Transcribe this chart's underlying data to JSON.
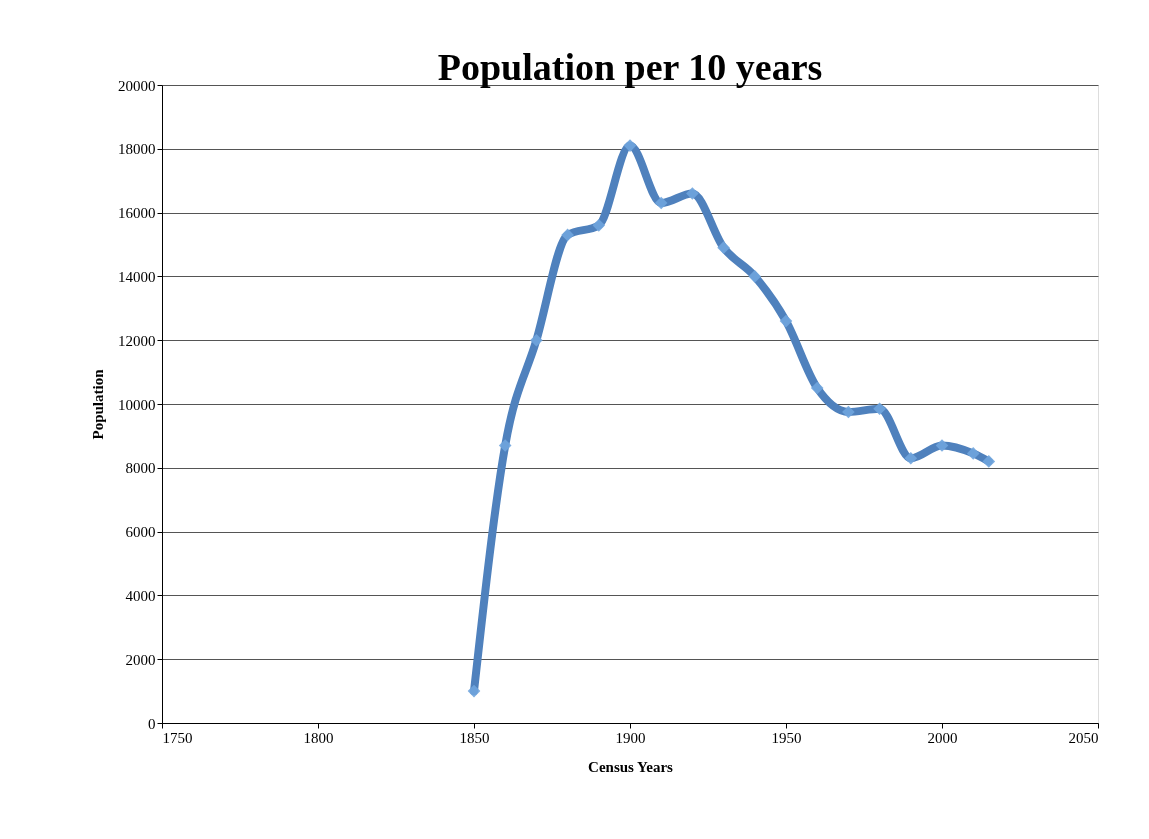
{
  "chart_data": {
    "type": "line",
    "title": "Population per 10 years",
    "xlabel": "Census Years",
    "ylabel": "Population",
    "x": [
      1850,
      1860,
      1870,
      1880,
      1890,
      1900,
      1910,
      1920,
      1930,
      1940,
      1950,
      1960,
      1970,
      1980,
      1990,
      2000,
      2010,
      2015
    ],
    "series": [
      {
        "color": "#4f81bd",
        "values": [
          1000,
          8700,
          12000,
          15300,
          15600,
          18100,
          16300,
          16600,
          14900,
          14000,
          12600,
          10500,
          9750,
          9850,
          8300,
          8700,
          8450,
          8200
        ]
      }
    ],
    "xlim": [
      1750,
      2050
    ],
    "xticks": [
      1750,
      1800,
      1850,
      1900,
      1950,
      2000,
      2050
    ],
    "ylim": [
      0,
      20000
    ],
    "yticks": [
      0,
      2000,
      4000,
      6000,
      8000,
      10000,
      12000,
      14000,
      16000,
      18000,
      20000
    ],
    "grid": "y",
    "marker": "diamond",
    "line_style": "solid"
  }
}
